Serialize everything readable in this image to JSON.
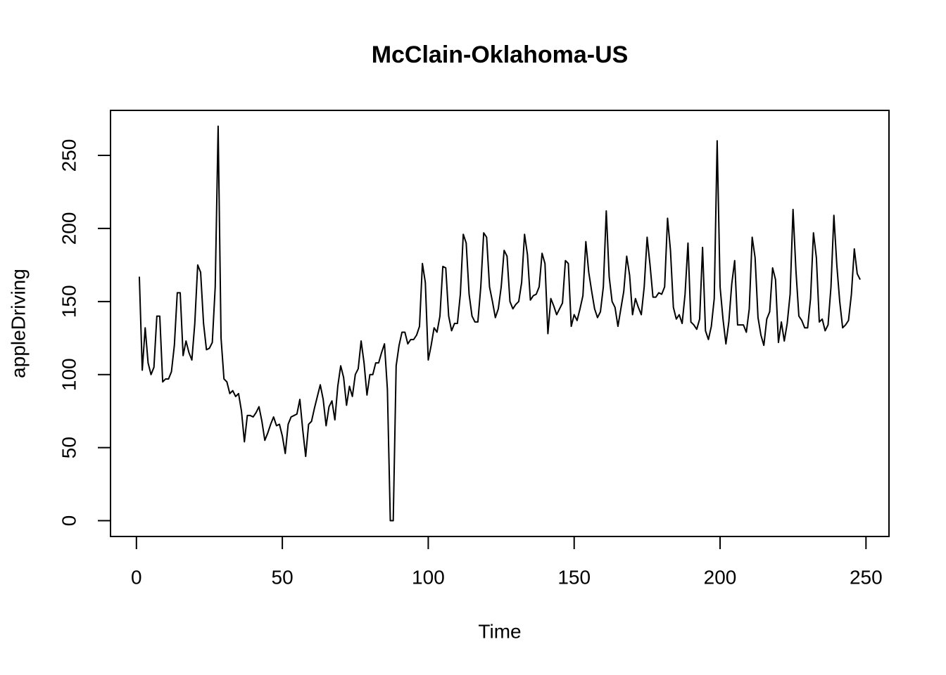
{
  "chart_data": {
    "type": "line",
    "title": "McClain-Oklahoma-US",
    "x_label": "Time",
    "y_label": "appleDriving",
    "color": "#000000",
    "x": [
      1,
      2,
      3,
      4,
      5,
      6,
      7,
      8,
      9,
      10,
      11,
      12,
      13,
      14,
      15,
      16,
      17,
      18,
      19,
      20,
      21,
      22,
      23,
      24,
      25,
      26,
      27,
      28,
      29,
      30,
      31,
      32,
      33,
      34,
      35,
      36,
      37,
      38,
      39,
      40,
      41,
      42,
      43,
      44,
      45,
      46,
      47,
      48,
      49,
      50,
      51,
      52,
      53,
      54,
      55,
      56,
      57,
      58,
      59,
      60,
      61,
      62,
      63,
      64,
      65,
      66,
      67,
      68,
      69,
      70,
      71,
      72,
      73,
      74,
      75,
      76,
      77,
      78,
      79,
      80,
      81,
      82,
      83,
      84,
      85,
      86,
      87,
      88,
      89,
      90,
      91,
      92,
      93,
      94,
      95,
      96,
      97,
      98,
      99,
      100,
      101,
      102,
      103,
      104,
      105,
      106,
      107,
      108,
      109,
      110,
      111,
      112,
      113,
      114,
      115,
      116,
      117,
      118,
      119,
      120,
      121,
      122,
      123,
      124,
      125,
      126,
      127,
      128,
      129,
      130,
      131,
      132,
      133,
      134,
      135,
      136,
      137,
      138,
      139,
      140,
      141,
      142,
      143,
      144,
      145,
      146,
      147,
      148,
      149,
      150,
      151,
      152,
      153,
      154,
      155,
      156,
      157,
      158,
      159,
      160,
      161,
      162,
      163,
      164,
      165,
      166,
      167,
      168,
      169,
      170,
      171,
      172,
      173,
      174,
      175,
      176,
      177,
      178,
      179,
      180,
      181,
      182,
      183,
      184,
      185,
      186,
      187,
      188,
      189,
      190,
      191,
      192,
      193,
      194,
      195,
      196,
      197,
      198,
      199,
      200,
      201,
      202,
      203,
      204,
      205,
      206,
      207,
      208,
      209,
      210,
      211,
      212,
      213,
      214,
      215,
      216,
      217,
      218,
      219,
      220,
      221,
      222,
      223,
      224,
      225,
      226,
      227,
      228,
      229,
      230,
      231,
      232,
      233,
      234,
      235,
      236,
      237,
      238,
      239,
      240,
      241,
      242,
      243,
      244,
      245,
      246,
      247,
      248
    ],
    "values": [
      167,
      103,
      132,
      108,
      100,
      105,
      140,
      140,
      95,
      97,
      97,
      102,
      120,
      156,
      156,
      113,
      123,
      115,
      110,
      135,
      175,
      170,
      135,
      117,
      118,
      122,
      160,
      270,
      125,
      97,
      95,
      87,
      89,
      85,
      87,
      75,
      54,
      72,
      72,
      71,
      74,
      78,
      68,
      55,
      60,
      66,
      71,
      65,
      66,
      58,
      46,
      66,
      71,
      72,
      73,
      83,
      62,
      44,
      66,
      68,
      77,
      85,
      93,
      83,
      65,
      78,
      82,
      69,
      92,
      106,
      98,
      79,
      92,
      85,
      100,
      104,
      123,
      108,
      86,
      100,
      100,
      108,
      108,
      115,
      121,
      90,
      0,
      0,
      106,
      120,
      129,
      129,
      121,
      124,
      124,
      127,
      133,
      176,
      163,
      110,
      120,
      132,
      129,
      140,
      174,
      173,
      140,
      130,
      135,
      135,
      155,
      196,
      190,
      155,
      140,
      136,
      136,
      160,
      197,
      194,
      160,
      150,
      139,
      145,
      160,
      185,
      181,
      150,
      145,
      148,
      150,
      163,
      196,
      182,
      151,
      154,
      155,
      160,
      183,
      176,
      128,
      152,
      147,
      141,
      145,
      149,
      178,
      176,
      133,
      141,
      137,
      145,
      154,
      191,
      170,
      157,
      145,
      139,
      143,
      160,
      212,
      167,
      150,
      146,
      133,
      145,
      157,
      181,
      168,
      141,
      152,
      146,
      141,
      160,
      194,
      175,
      153,
      153,
      156,
      155,
      160,
      207,
      185,
      146,
      138,
      141,
      135,
      155,
      190,
      136,
      134,
      131,
      138,
      187,
      130,
      124,
      133,
      152,
      260,
      160,
      138,
      121,
      136,
      162,
      178,
      134,
      134,
      134,
      129,
      145,
      194,
      180,
      139,
      127,
      120,
      138,
      143,
      173,
      165,
      122,
      136,
      123,
      135,
      155,
      213,
      171,
      140,
      137,
      132,
      132,
      152,
      197,
      180,
      136,
      138,
      130,
      134,
      160,
      209,
      175,
      150,
      132,
      134,
      137,
      155,
      186,
      169,
      165
    ],
    "xlim": [
      -8.88,
      257.88
    ],
    "ylim": [
      -10.8,
      280.8
    ],
    "xticks": [
      0,
      50,
      100,
      150,
      200,
      250
    ],
    "yticks": [
      0,
      50,
      100,
      150,
      200,
      250
    ]
  }
}
